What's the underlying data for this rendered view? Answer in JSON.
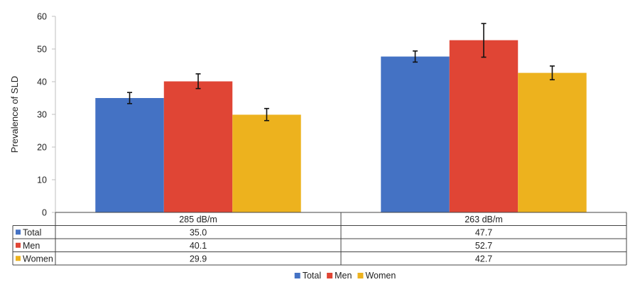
{
  "chart_data": {
    "type": "bar",
    "ylabel": "Prevalence of SLD",
    "ylim": [
      0,
      60
    ],
    "yticks": [
      0,
      10,
      20,
      30,
      40,
      50,
      60
    ],
    "categories": [
      "285 dB/m",
      "263 dB/m"
    ],
    "series": [
      {
        "name": "Total",
        "color": "#4472C4",
        "values": [
          35.0,
          47.7
        ],
        "value_labels": [
          "35.0",
          "47.7"
        ],
        "error": [
          [
            33.3,
            36.7
          ],
          [
            46.0,
            49.4
          ]
        ]
      },
      {
        "name": "Men",
        "color": "#E04535",
        "values": [
          40.1,
          52.7
        ],
        "value_labels": [
          "40.1",
          "52.7"
        ],
        "error": [
          [
            37.9,
            42.4
          ],
          [
            47.5,
            57.8
          ]
        ]
      },
      {
        "name": "Women",
        "color": "#EDB21E",
        "values": [
          29.9,
          42.7
        ],
        "value_labels": [
          "29.9",
          "42.7"
        ],
        "error": [
          [
            28.1,
            31.8
          ],
          [
            40.6,
            44.8
          ]
        ]
      }
    ],
    "data_table": true,
    "legend": "bottom",
    "grid": false
  }
}
